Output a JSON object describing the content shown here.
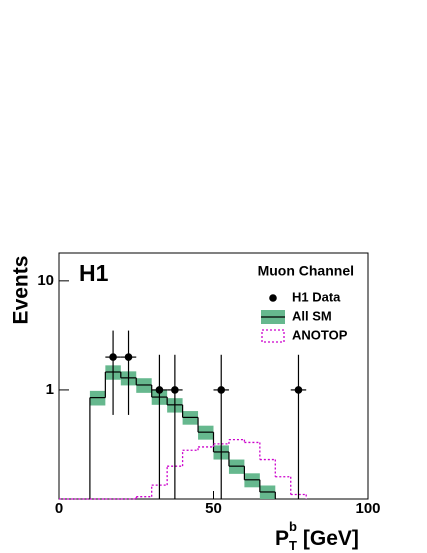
{
  "chart_data": {
    "type": "histogram",
    "log_y": true,
    "y_label": "Events",
    "x_label": {
      "main": "P",
      "sub": "T",
      "sup": "b",
      "unit": "[GeV]"
    },
    "annotations": [
      "H1",
      "Muon Channel"
    ],
    "xlim": [
      0,
      100
    ],
    "ylim": [
      0.1,
      18
    ],
    "xticks": [
      0,
      50,
      100
    ],
    "yticks": [
      1,
      10
    ],
    "legend": "upper right",
    "series": [
      {
        "name": "H1 Data",
        "kind": "points",
        "color": "#000000",
        "x": [
          17.5,
          22.5,
          32.5,
          37.5,
          52.5,
          77.5
        ],
        "values": [
          2,
          2,
          1,
          1,
          1,
          1
        ],
        "err_low": [
          1.41,
          1.41,
          1,
          1,
          1,
          1
        ],
        "err_high": [
          1.5,
          1.5,
          1.1,
          1.1,
          1.1,
          1.1
        ],
        "x_err": [
          2.5,
          2.5,
          2.5,
          2.5,
          2.5,
          2.5
        ]
      },
      {
        "name": "All SM",
        "kind": "band-step",
        "color": "#000000",
        "band_color": "#66b88e",
        "bins": [
          10,
          15,
          20,
          25,
          30,
          35,
          40,
          45,
          50,
          55,
          60,
          65,
          70
        ],
        "values": [
          0.85,
          1.46,
          1.29,
          1.11,
          0.86,
          0.73,
          0.56,
          0.41,
          0.27,
          0.2,
          0.15,
          0.116
        ],
        "errors": [
          0.13,
          0.22,
          0.19,
          0.17,
          0.13,
          0.11,
          0.08,
          0.06,
          0.04,
          0.03,
          0.022,
          0.017
        ]
      },
      {
        "name": "ANOTOP",
        "kind": "step-dotted",
        "color": "#cc00cc",
        "bins": [
          0,
          5,
          10,
          15,
          20,
          25,
          30,
          35,
          40,
          45,
          50,
          55,
          60,
          65,
          70,
          75,
          80
        ],
        "values": [
          0.1,
          0.1,
          0.1,
          0.1,
          0.1,
          0.105,
          0.134,
          0.2,
          0.28,
          0.3,
          0.32,
          0.35,
          0.33,
          0.23,
          0.16,
          0.11
        ]
      }
    ]
  }
}
